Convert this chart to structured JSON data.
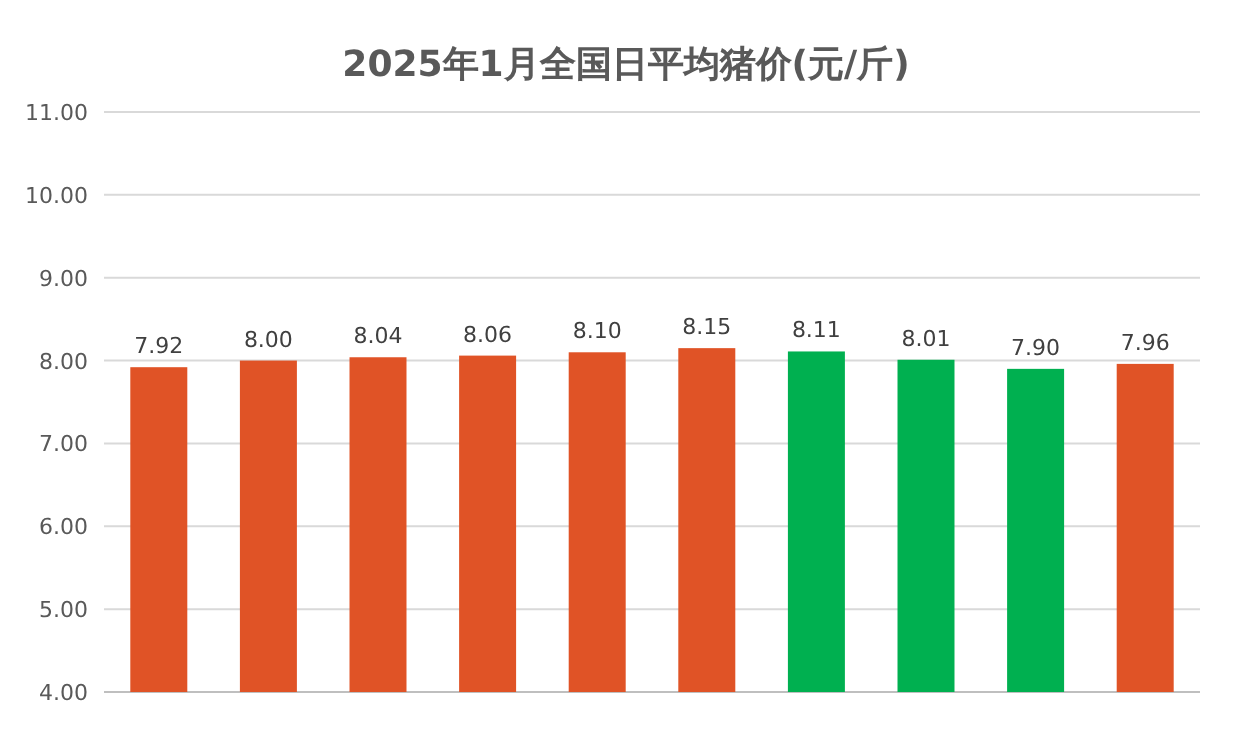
{
  "chart_data": {
    "type": "bar",
    "title": "2025年1月全国日平均猪价(元/斤)",
    "categories": [
      null,
      null,
      null,
      null,
      null,
      null,
      null,
      null,
      null,
      null
    ],
    "values": [
      7.92,
      8.0,
      8.04,
      8.06,
      8.1,
      8.15,
      8.11,
      8.01,
      7.9,
      7.96
    ],
    "colors": [
      "#e05326",
      "#e05326",
      "#e05326",
      "#e05326",
      "#e05326",
      "#e05326",
      "#00b050",
      "#00b050",
      "#00b050",
      "#e05326"
    ],
    "value_labels": [
      "7.92",
      "8.00",
      "8.04",
      "8.06",
      "8.10",
      "8.15",
      "8.11",
      "8.01",
      "7.90",
      "7.96"
    ],
    "ylim": [
      4,
      11
    ],
    "yticks": [
      {
        "value": 4,
        "label": "4.00"
      },
      {
        "value": 5,
        "label": "5.00"
      },
      {
        "value": 6,
        "label": "6.00"
      },
      {
        "value": 7,
        "label": "7.00"
      },
      {
        "value": 8,
        "label": "8.00"
      },
      {
        "value": 9,
        "label": "9.00"
      },
      {
        "value": 10,
        "label": "10.00"
      },
      {
        "value": 11,
        "label": "11.00"
      }
    ],
    "grid": "y"
  }
}
